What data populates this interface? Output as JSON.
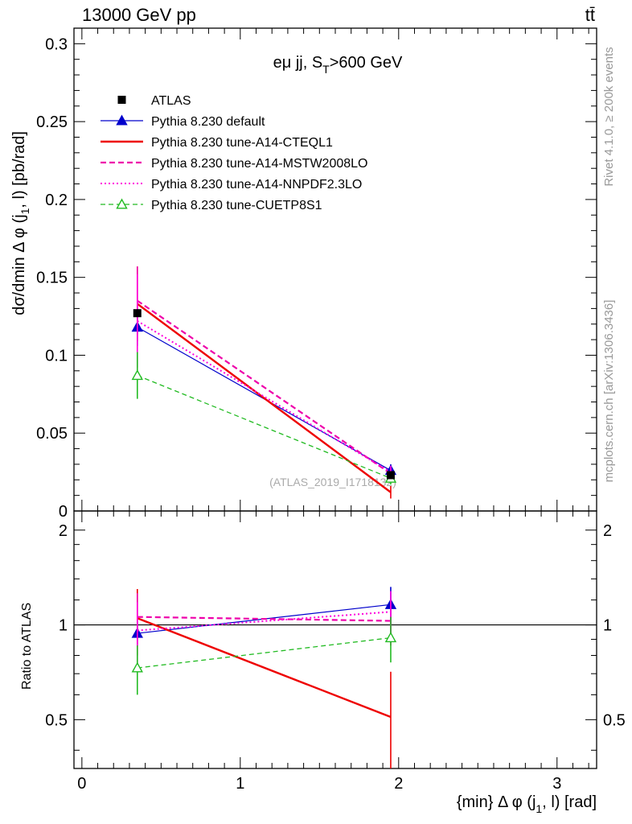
{
  "header": {
    "left": "13000 GeV pp",
    "right": "tt̄"
  },
  "side_labels": {
    "rivet": "Rivet 4.1.0, ≥ 200k events",
    "mcplots": "mcplots.cern.ch [arXiv:1306.3436]"
  },
  "watermark": "(ATLAS_2019_I1718132)",
  "chart_data": {
    "type": "line",
    "title_parts": {
      "main": "eμ jj, S",
      "sub": "T",
      "tail": ">600 GeV"
    },
    "xlabel_parts": {
      "pre": "{min} Δ φ (j",
      "sub": "1",
      "post": ", l) [rad]"
    },
    "ylabel_parts": {
      "pre": "dσ/dmin Δ φ (j",
      "sub": "1",
      "post": ", l) [pb/rad]"
    },
    "ratio_ylabel": "Ratio to ATLAS",
    "xlim": [
      -0.05,
      3.25
    ],
    "ylim": [
      0,
      0.31
    ],
    "ratio_ylim": [
      0.35,
      2.3
    ],
    "x_ticks": [
      0,
      1,
      2,
      3
    ],
    "x_tick_labels": [
      "0",
      "1",
      "2",
      "3"
    ],
    "y_ticks": [
      0,
      0.05,
      0.1,
      0.15,
      0.2,
      0.25,
      0.3
    ],
    "y_tick_labels": [
      "0",
      "0.05",
      "0.1",
      "0.15",
      "0.2",
      "0.25",
      "0.3"
    ],
    "ratio_ticks": [
      0.5,
      1,
      2
    ],
    "ratio_tick_labels": [
      "0.5",
      "1",
      "2"
    ],
    "x": [
      0.35,
      1.95
    ],
    "data": {
      "name": "ATLAS",
      "color": "#000000",
      "values": [
        0.127,
        0.023
      ],
      "errors": [
        0.0,
        0.0
      ]
    },
    "series": [
      {
        "name": "Pythia 8.230 default",
        "color": "#0000cc",
        "dash": "",
        "width": 1.2,
        "marker": "triangle",
        "values": [
          0.118,
          0.026
        ],
        "errors": [
          0.012,
          0.004
        ],
        "ratio": [
          0.94,
          1.16
        ],
        "ratio_errors": [
          0.08,
          0.16
        ]
      },
      {
        "name": "Pythia 8.230 tune-A14-CTEQL1",
        "color": "#ee0000",
        "dash": "",
        "width": 2.4,
        "marker": "none",
        "values": [
          0.133,
          0.012
        ],
        "errors": [
          0.024,
          0.004
        ],
        "ratio": [
          1.05,
          0.51
        ],
        "ratio_errors": [
          0.25,
          0.2
        ]
      },
      {
        "name": "Pythia 8.230 tune-A14-MSTW2008LO",
        "color": "#ee00aa",
        "dash": "7,4",
        "width": 2.2,
        "marker": "none",
        "values": [
          0.135,
          0.024
        ],
        "errors": [
          0.022,
          0.004
        ],
        "ratio": [
          1.06,
          1.03
        ],
        "ratio_errors": [
          0.2,
          0.17
        ]
      },
      {
        "name": "Pythia 8.230 tune-A14-NNPDF2.3LO",
        "color": "#ff00dd",
        "dash": "2,3",
        "width": 2.0,
        "marker": "none",
        "values": [
          0.122,
          0.025
        ],
        "errors": [
          0.03,
          0.004
        ],
        "ratio": [
          0.96,
          1.1
        ],
        "ratio_errors": [
          0.22,
          0.18
        ]
      },
      {
        "name": "Pythia 8.230 tune-CUETP8S1",
        "color": "#22bb22",
        "dash": "6,4",
        "width": 1.3,
        "marker": "open-triangle",
        "values": [
          0.087,
          0.021
        ],
        "errors": [
          0.015,
          0.004
        ],
        "ratio": [
          0.73,
          0.91
        ],
        "ratio_errors": [
          0.13,
          0.15
        ]
      }
    ]
  }
}
